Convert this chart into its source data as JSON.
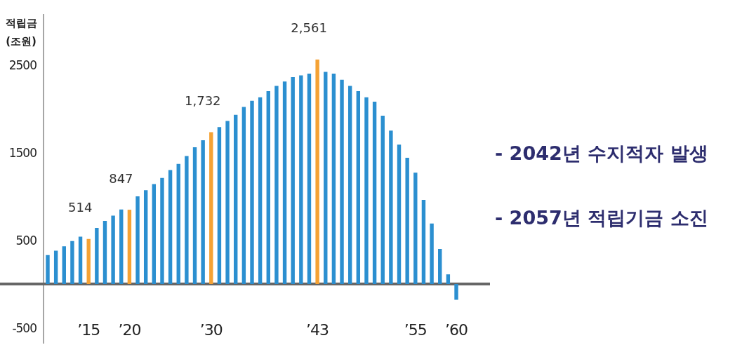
{
  "chart_data": {
    "type": "bar",
    "ylabel": "적립금 (조원)",
    "categories": [
      null,
      null,
      null,
      null,
      null,
      "’15",
      null,
      null,
      null,
      null,
      "’20",
      null,
      null,
      null,
      null,
      null,
      null,
      null,
      null,
      null,
      "’30",
      null,
      null,
      null,
      null,
      null,
      null,
      null,
      null,
      null,
      null,
      null,
      null,
      "’43",
      null,
      null,
      null,
      null,
      null,
      null,
      null,
      null,
      null,
      null,
      null,
      "’55",
      null,
      null,
      null,
      null,
      "’60"
    ],
    "values": [
      330,
      380,
      430,
      490,
      540,
      514,
      640,
      720,
      780,
      850,
      847,
      1000,
      1070,
      1140,
      1210,
      1300,
      1370,
      1460,
      1560,
      1640,
      1732,
      1790,
      1860,
      1930,
      2020,
      2090,
      2130,
      2200,
      2260,
      2310,
      2360,
      2380,
      2400,
      2561,
      2420,
      2400,
      2330,
      2260,
      2200,
      2130,
      2080,
      1920,
      1750,
      1590,
      1440,
      1270,
      960,
      690,
      400,
      110,
      -180
    ],
    "value_labels": [
      null,
      null,
      null,
      null,
      null,
      "514",
      null,
      null,
      null,
      null,
      "847",
      null,
      null,
      null,
      null,
      null,
      null,
      null,
      null,
      null,
      "1,732",
      null,
      null,
      null,
      null,
      null,
      null,
      null,
      null,
      null,
      null,
      null,
      null,
      "2,561",
      null,
      null,
      null,
      null,
      null,
      null,
      null,
      null,
      null,
      null,
      null,
      null,
      null,
      null,
      null,
      null,
      null
    ],
    "colors": [
      "#2b8fd0",
      "#2b8fd0",
      "#2b8fd0",
      "#2b8fd0",
      "#2b8fd0",
      "#f5a234",
      "#2b8fd0",
      "#2b8fd0",
      "#2b8fd0",
      "#2b8fd0",
      "#f5a234",
      "#2b8fd0",
      "#2b8fd0",
      "#2b8fd0",
      "#2b8fd0",
      "#2b8fd0",
      "#2b8fd0",
      "#2b8fd0",
      "#2b8fd0",
      "#2b8fd0",
      "#f5a234",
      "#2b8fd0",
      "#2b8fd0",
      "#2b8fd0",
      "#2b8fd0",
      "#2b8fd0",
      "#2b8fd0",
      "#2b8fd0",
      "#2b8fd0",
      "#2b8fd0",
      "#2b8fd0",
      "#2b8fd0",
      "#2b8fd0",
      "#f5a234",
      "#2b8fd0",
      "#2b8fd0",
      "#2b8fd0",
      "#2b8fd0",
      "#2b8fd0",
      "#2b8fd0",
      "#2b8fd0",
      "#2b8fd0",
      "#2b8fd0",
      "#2b8fd0",
      "#2b8fd0",
      "#2b8fd0",
      "#2b8fd0",
      "#2b8fd0",
      "#2b8fd0",
      "#2b8fd0",
      "#2b8fd0"
    ],
    "ylim": [
      -680,
      3080
    ],
    "yticks": [
      2500,
      1500,
      500,
      -500
    ],
    "annotations": [
      "- 2042년 수지적자 발생",
      "- 2057년 적립기금 소진"
    ]
  }
}
